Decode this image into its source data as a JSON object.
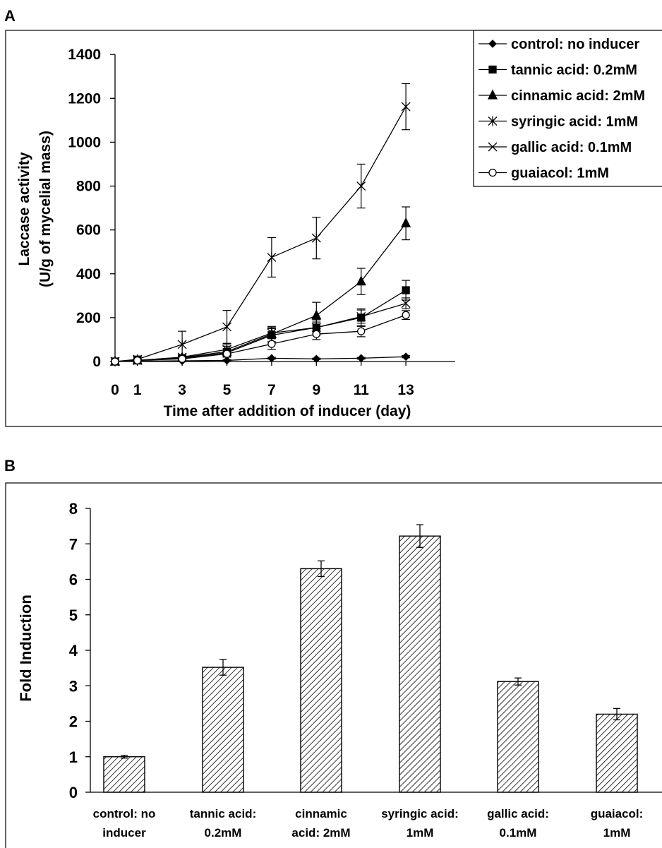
{
  "panels": {
    "a_label": "A",
    "b_label": "B"
  },
  "chart_data": [
    {
      "type": "line",
      "panel": "A",
      "xlabel": "Time after addition of inducer (day)",
      "ylabel_line1": "Laccase activity",
      "ylabel_line2": "(U/g of mycelial mass)",
      "x": [
        0,
        1,
        3,
        5,
        7,
        9,
        11,
        13
      ],
      "x_tick_labels": [
        "0",
        "1",
        "3",
        "5",
        "7",
        "9",
        "11",
        "13"
      ],
      "y_ticks": [
        0,
        200,
        400,
        600,
        800,
        1000,
        1200,
        1400
      ],
      "y_tick_labels": [
        "0",
        "200",
        "400",
        "600",
        "800",
        "1000",
        "1200",
        "1400"
      ],
      "ylim": [
        0,
        1400
      ],
      "grid": false,
      "legend_position": "top-right",
      "series": [
        {
          "name": "control: no inducer",
          "marker": "diamond",
          "values": [
            0,
            2,
            3,
            5,
            15,
            12,
            15,
            22
          ],
          "errors": [
            0,
            2,
            2,
            3,
            4,
            3,
            4,
            5
          ]
        },
        {
          "name": "tannic acid: 0.2mM",
          "marker": "square",
          "values": [
            0,
            5,
            15,
            40,
            120,
            155,
            200,
            325
          ],
          "errors": [
            0,
            5,
            10,
            20,
            30,
            35,
            40,
            45
          ]
        },
        {
          "name": "cinnamic acid: 2mM",
          "marker": "triangle",
          "values": [
            0,
            5,
            18,
            45,
            125,
            210,
            365,
            630
          ],
          "errors": [
            0,
            5,
            10,
            25,
            35,
            60,
            60,
            75
          ]
        },
        {
          "name": "syringic acid: 1mM",
          "marker": "asterisk",
          "values": [
            0,
            10,
            78,
            158,
            475,
            563,
            800,
            1162
          ],
          "errors": [
            0,
            15,
            60,
            75,
            90,
            95,
            100,
            105
          ]
        },
        {
          "name": "gallic acid:  0.1mM",
          "marker": "x",
          "values": [
            0,
            5,
            20,
            55,
            130,
            155,
            205,
            265
          ],
          "errors": [
            0,
            5,
            10,
            25,
            25,
            25,
            30,
            25
          ]
        },
        {
          "name": "guaiacol:  1mM",
          "marker": "circle",
          "values": [
            0,
            5,
            12,
            35,
            80,
            125,
            138,
            212
          ],
          "errors": [
            0,
            5,
            8,
            12,
            25,
            25,
            25,
            20
          ]
        }
      ]
    },
    {
      "type": "bar",
      "panel": "B",
      "ylabel": "Fold Induction",
      "categories": [
        [
          "control: no",
          "inducer"
        ],
        [
          "tannic acid:",
          "0.2mM"
        ],
        [
          "cinnamic",
          "acid: 2mM"
        ],
        [
          "syringic acid:",
          "1mM"
        ],
        [
          "gallic acid:",
          "0.1mM"
        ],
        [
          "guaiacol:",
          "1mM"
        ]
      ],
      "values": [
        1.0,
        3.52,
        6.3,
        7.22,
        3.12,
        2.2
      ],
      "errors": [
        0.04,
        0.22,
        0.22,
        0.32,
        0.1,
        0.16
      ],
      "y_ticks": [
        0,
        1,
        2,
        3,
        4,
        5,
        6,
        7,
        8
      ],
      "y_tick_labels": [
        "0",
        "1",
        "2",
        "3",
        "4",
        "5",
        "6",
        "7",
        "8"
      ],
      "ylim": [
        0,
        8
      ],
      "grid": false,
      "bar_fill": "diagonal-hatch"
    }
  ]
}
